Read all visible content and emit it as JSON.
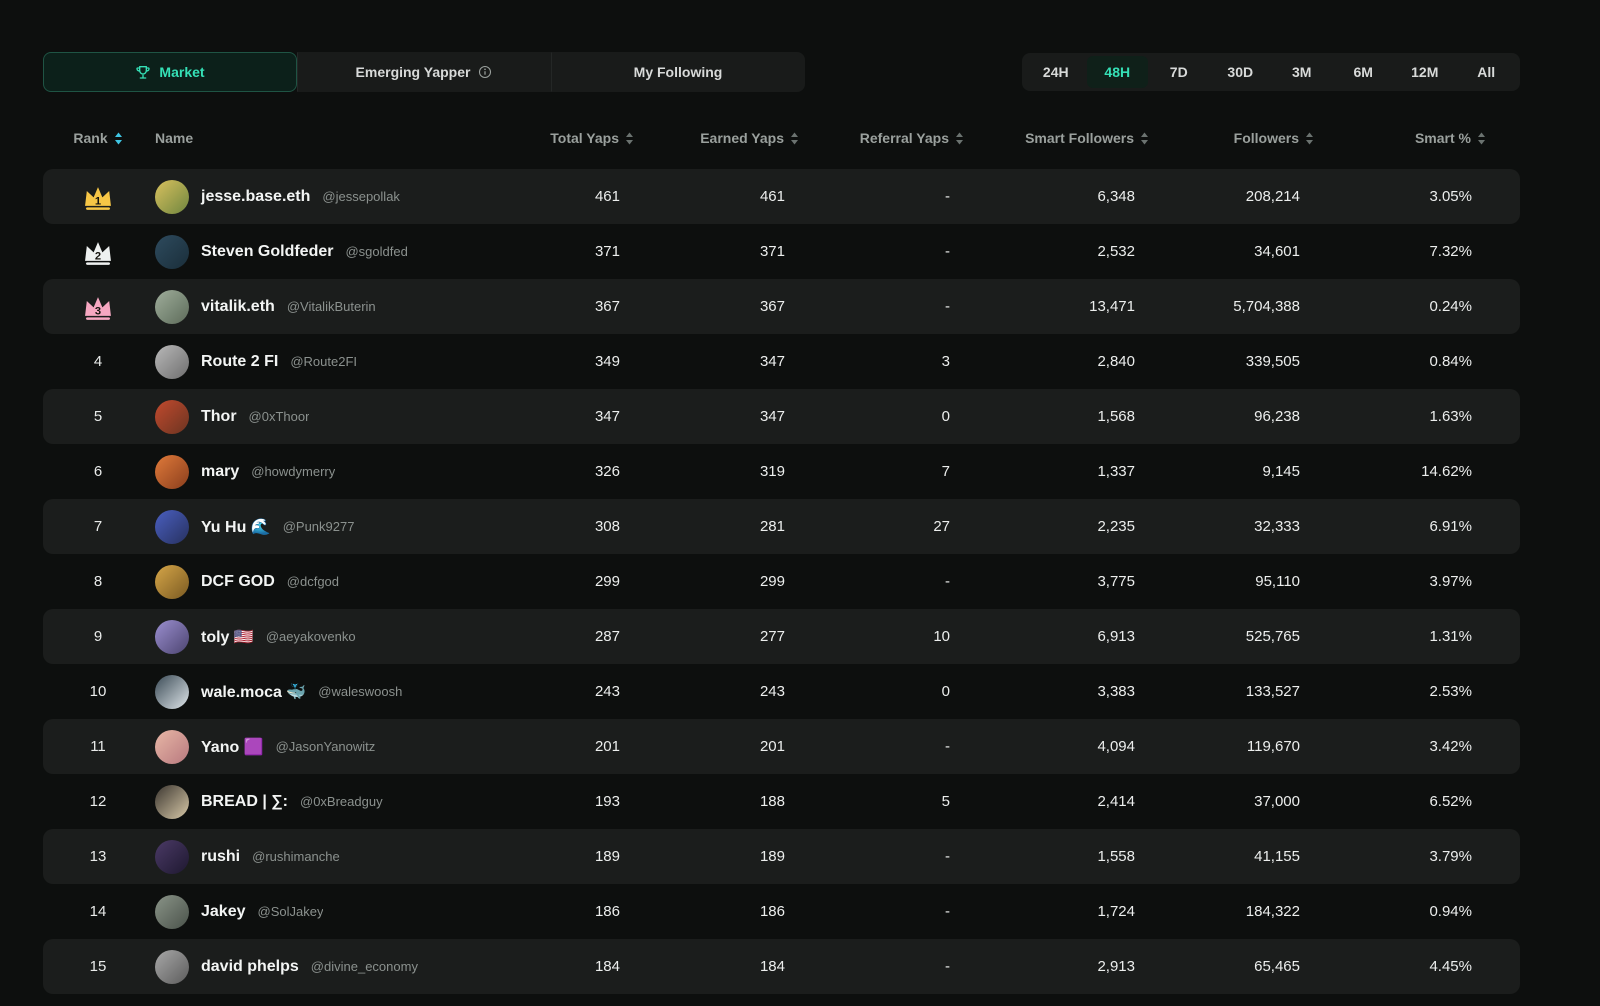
{
  "colors": {
    "accent_teal": "#35e0b6",
    "active_sort_icon": "#3fc6e3",
    "stripe_row": "#1b1d1c",
    "crown_gold": "#f7c646",
    "crown_silver": "#eef1f0",
    "crown_pink": "#f6a7c1"
  },
  "tabs": [
    {
      "label": "Market",
      "active": true,
      "icon": "trophy-icon"
    },
    {
      "label": "Emerging Yapper",
      "active": false,
      "icon": "info-icon"
    },
    {
      "label": "My Following",
      "active": false
    }
  ],
  "time_filters": {
    "options": [
      "24H",
      "48H",
      "7D",
      "30D",
      "3M",
      "6M",
      "12M",
      "All"
    ],
    "selected": "48H"
  },
  "table": {
    "columns": [
      {
        "label": "Rank",
        "sortable": true,
        "align": "center",
        "active_sort": true
      },
      {
        "label": "Name",
        "sortable": false,
        "align": "left"
      },
      {
        "label": "Total Yaps",
        "sortable": true,
        "align": "right"
      },
      {
        "label": "Earned Yaps",
        "sortable": true,
        "align": "right"
      },
      {
        "label": "Referral Yaps",
        "sortable": true,
        "align": "right"
      },
      {
        "label": "Smart Followers",
        "sortable": true,
        "align": "right"
      },
      {
        "label": "Followers",
        "sortable": true,
        "align": "right"
      },
      {
        "label": "Smart %",
        "sortable": true,
        "align": "right"
      }
    ],
    "rows": [
      {
        "rank": 1,
        "crown": "#f7c646",
        "name": "jesse.base.eth",
        "handle": "@jessepollak",
        "total": "461",
        "earned": "461",
        "referral": "-",
        "smart_followers": "6,348",
        "followers": "208,214",
        "smart_pct": "3.05%",
        "avatar_colors": [
          "#d9c15e",
          "#6f863f"
        ]
      },
      {
        "rank": 2,
        "crown": "#eef1f0",
        "name": "Steven Goldfeder",
        "handle": "@sgoldfed",
        "total": "371",
        "earned": "371",
        "referral": "-",
        "smart_followers": "2,532",
        "followers": "34,601",
        "smart_pct": "7.32%",
        "avatar_colors": [
          "#2e4b5e",
          "#1a2e3a"
        ]
      },
      {
        "rank": 3,
        "crown": "#f6a7c1",
        "name": "vitalik.eth",
        "handle": "@VitalikButerin",
        "total": "367",
        "earned": "367",
        "referral": "-",
        "smart_followers": "13,471",
        "followers": "5,704,388",
        "smart_pct": "0.24%",
        "avatar_colors": [
          "#9fae9b",
          "#5d6b5a"
        ]
      },
      {
        "rank": 4,
        "crown": null,
        "name": "Route 2 FI",
        "handle": "@Route2FI",
        "total": "349",
        "earned": "347",
        "referral": "3",
        "smart_followers": "2,840",
        "followers": "339,505",
        "smart_pct": "0.84%",
        "avatar_colors": [
          "#b9b9b9",
          "#6e6e6e"
        ]
      },
      {
        "rank": 5,
        "crown": null,
        "name": "Thor",
        "handle": "@0xThoor",
        "total": "347",
        "earned": "347",
        "referral": "0",
        "smart_followers": "1,568",
        "followers": "96,238",
        "smart_pct": "1.63%",
        "avatar_colors": [
          "#c24a2e",
          "#6b3421"
        ]
      },
      {
        "rank": 6,
        "crown": null,
        "name": "mary",
        "handle": "@howdymerry",
        "total": "326",
        "earned": "319",
        "referral": "7",
        "smart_followers": "1,337",
        "followers": "9,145",
        "smart_pct": "14.62%",
        "avatar_colors": [
          "#e07a3a",
          "#8a3e1d"
        ]
      },
      {
        "rank": 7,
        "crown": null,
        "name": "Yu Hu 🌊",
        "handle": "@Punk9277",
        "total": "308",
        "earned": "281",
        "referral": "27",
        "smart_followers": "2,235",
        "followers": "32,333",
        "smart_pct": "6.91%",
        "avatar_colors": [
          "#4a5fc0",
          "#27315f"
        ]
      },
      {
        "rank": 8,
        "crown": null,
        "name": "DCF GOD",
        "handle": "@dcfgod",
        "total": "299",
        "earned": "299",
        "referral": "-",
        "smart_followers": "3,775",
        "followers": "95,110",
        "smart_pct": "3.97%",
        "avatar_colors": [
          "#d6a648",
          "#7a5a22"
        ]
      },
      {
        "rank": 9,
        "crown": null,
        "name": "toly 🇺🇸",
        "handle": "@aeyakovenko",
        "total": "287",
        "earned": "277",
        "referral": "10",
        "smart_followers": "6,913",
        "followers": "525,765",
        "smart_pct": "1.31%",
        "avatar_colors": [
          "#9b8fd0",
          "#4c4470"
        ]
      },
      {
        "rank": 10,
        "crown": null,
        "name": "wale.moca 🐳",
        "handle": "@waleswoosh",
        "total": "243",
        "earned": "243",
        "referral": "0",
        "smart_followers": "3,383",
        "followers": "133,527",
        "smart_pct": "2.53%",
        "avatar_colors": [
          "#3a4a55",
          "#dfe6ea"
        ]
      },
      {
        "rank": 11,
        "crown": null,
        "name": "Yano 🟪",
        "handle": "@JasonYanowitz",
        "total": "201",
        "earned": "201",
        "referral": "-",
        "smart_followers": "4,094",
        "followers": "119,670",
        "smart_pct": "3.42%",
        "avatar_colors": [
          "#e8b7a6",
          "#b8797f"
        ]
      },
      {
        "rank": 12,
        "crown": null,
        "name": "BREAD | ∑:",
        "handle": "@0xBreadguy",
        "total": "193",
        "earned": "188",
        "referral": "5",
        "smart_followers": "2,414",
        "followers": "37,000",
        "smart_pct": "6.52%",
        "avatar_colors": [
          "#3b3630",
          "#d8c9a8"
        ]
      },
      {
        "rank": 13,
        "crown": null,
        "name": "rushi",
        "handle": "@rushimanche",
        "total": "189",
        "earned": "189",
        "referral": "-",
        "smart_followers": "1,558",
        "followers": "41,155",
        "smart_pct": "3.79%",
        "avatar_colors": [
          "#4b3a66",
          "#1e1830"
        ]
      },
      {
        "rank": 14,
        "crown": null,
        "name": "Jakey",
        "handle": "@SolJakey",
        "total": "186",
        "earned": "186",
        "referral": "-",
        "smart_followers": "1,724",
        "followers": "184,322",
        "smart_pct": "0.94%",
        "avatar_colors": [
          "#8a9488",
          "#4a524a"
        ]
      },
      {
        "rank": 15,
        "crown": null,
        "name": "david phelps",
        "handle": "@divine_economy",
        "total": "184",
        "earned": "184",
        "referral": "-",
        "smart_followers": "2,913",
        "followers": "65,465",
        "smart_pct": "4.45%",
        "avatar_colors": [
          "#a8a8a8",
          "#5c5c5c"
        ]
      }
    ]
  }
}
